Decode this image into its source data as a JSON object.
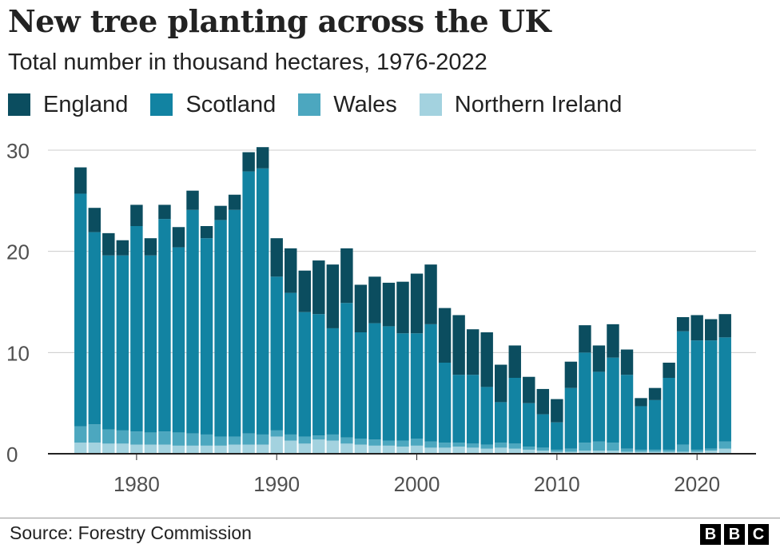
{
  "header": {
    "title": "New tree planting across the UK",
    "subtitle": "Total number in thousand hectares, 1976-2022"
  },
  "legend": [
    {
      "label": "England",
      "color": "#0b4d5f"
    },
    {
      "label": "Scotland",
      "color": "#1283a2"
    },
    {
      "label": "Wales",
      "color": "#4ca7bf"
    },
    {
      "label": "Northern Ireland",
      "color": "#a3d2df"
    }
  ],
  "footer": {
    "source": "Source: Forestry Commission",
    "logo_letters": [
      "B",
      "B",
      "C"
    ]
  },
  "chart_data": {
    "type": "bar",
    "stacked": true,
    "title": "New tree planting across the UK",
    "subtitle": "Total number in thousand hectares, 1976-2022",
    "xlabel": "",
    "ylabel": "",
    "ylim": [
      0,
      30
    ],
    "y_ticks": [
      0,
      10,
      20,
      30
    ],
    "x_ticks": [
      1980,
      1990,
      2000,
      2010,
      2020
    ],
    "grid": true,
    "legend_position": "top-left",
    "categories": [
      1976,
      1977,
      1978,
      1979,
      1980,
      1981,
      1982,
      1983,
      1984,
      1985,
      1986,
      1987,
      1988,
      1989,
      1990,
      1991,
      1992,
      1993,
      1994,
      1995,
      1996,
      1997,
      1998,
      1999,
      2000,
      2001,
      2002,
      2003,
      2004,
      2005,
      2006,
      2007,
      2008,
      2009,
      2010,
      2011,
      2012,
      2013,
      2014,
      2015,
      2016,
      2017,
      2018,
      2019,
      2020,
      2021,
      2022
    ],
    "series": [
      {
        "name": "Northern Ireland",
        "color": "#a3d2df",
        "values": [
          1.1,
          1.1,
          1.0,
          1.0,
          0.9,
          0.9,
          0.9,
          0.8,
          0.8,
          0.8,
          0.8,
          0.9,
          0.9,
          0.9,
          1.7,
          1.3,
          1.0,
          1.4,
          1.3,
          1.0,
          0.9,
          0.8,
          0.8,
          0.7,
          0.8,
          0.6,
          0.6,
          0.7,
          0.6,
          0.5,
          0.6,
          0.5,
          0.4,
          0.3,
          0.2,
          0.2,
          0.3,
          0.3,
          0.3,
          0.2,
          0.2,
          0.2,
          0.2,
          0.2,
          0.2,
          0.3,
          0.5
        ]
      },
      {
        "name": "Wales",
        "color": "#4ca7bf",
        "values": [
          1.6,
          1.8,
          1.4,
          1.3,
          1.3,
          1.2,
          1.3,
          1.3,
          1.2,
          1.1,
          0.9,
          0.8,
          1.1,
          1.0,
          0.6,
          0.6,
          0.7,
          0.4,
          0.6,
          0.6,
          0.6,
          0.6,
          0.5,
          0.6,
          0.7,
          0.6,
          0.5,
          0.4,
          0.4,
          0.4,
          0.5,
          0.5,
          0.3,
          0.3,
          0.2,
          0.3,
          0.8,
          0.9,
          0.8,
          0.3,
          0.2,
          0.2,
          0.2,
          0.7,
          0.2,
          0.2,
          0.7
        ]
      },
      {
        "name": "Scotland",
        "color": "#1283a2",
        "values": [
          23.0,
          19.0,
          17.2,
          17.3,
          20.3,
          17.5,
          21.0,
          18.3,
          22.1,
          19.4,
          21.4,
          22.4,
          25.9,
          26.3,
          15.2,
          14.0,
          12.3,
          12.0,
          10.5,
          13.3,
          10.5,
          11.5,
          11.3,
          10.6,
          10.4,
          11.6,
          7.9,
          6.7,
          6.8,
          5.7,
          4.0,
          6.5,
          4.3,
          3.3,
          2.7,
          6.0,
          8.9,
          6.9,
          8.4,
          7.3,
          4.3,
          4.9,
          7.1,
          11.2,
          10.8,
          10.7,
          10.3
        ]
      },
      {
        "name": "England",
        "color": "#0b4d5f",
        "values": [
          2.6,
          2.4,
          2.2,
          1.5,
          2.1,
          1.7,
          1.4,
          2.0,
          1.9,
          1.2,
          1.4,
          1.5,
          1.9,
          2.1,
          3.8,
          4.4,
          4.1,
          5.3,
          6.3,
          5.4,
          4.7,
          4.6,
          4.3,
          5.1,
          5.9,
          5.9,
          5.4,
          5.9,
          4.5,
          5.4,
          3.7,
          3.2,
          2.6,
          2.5,
          2.3,
          2.6,
          2.7,
          2.6,
          3.3,
          2.5,
          0.8,
          1.2,
          1.5,
          1.4,
          2.5,
          2.1,
          2.3
        ]
      }
    ]
  }
}
